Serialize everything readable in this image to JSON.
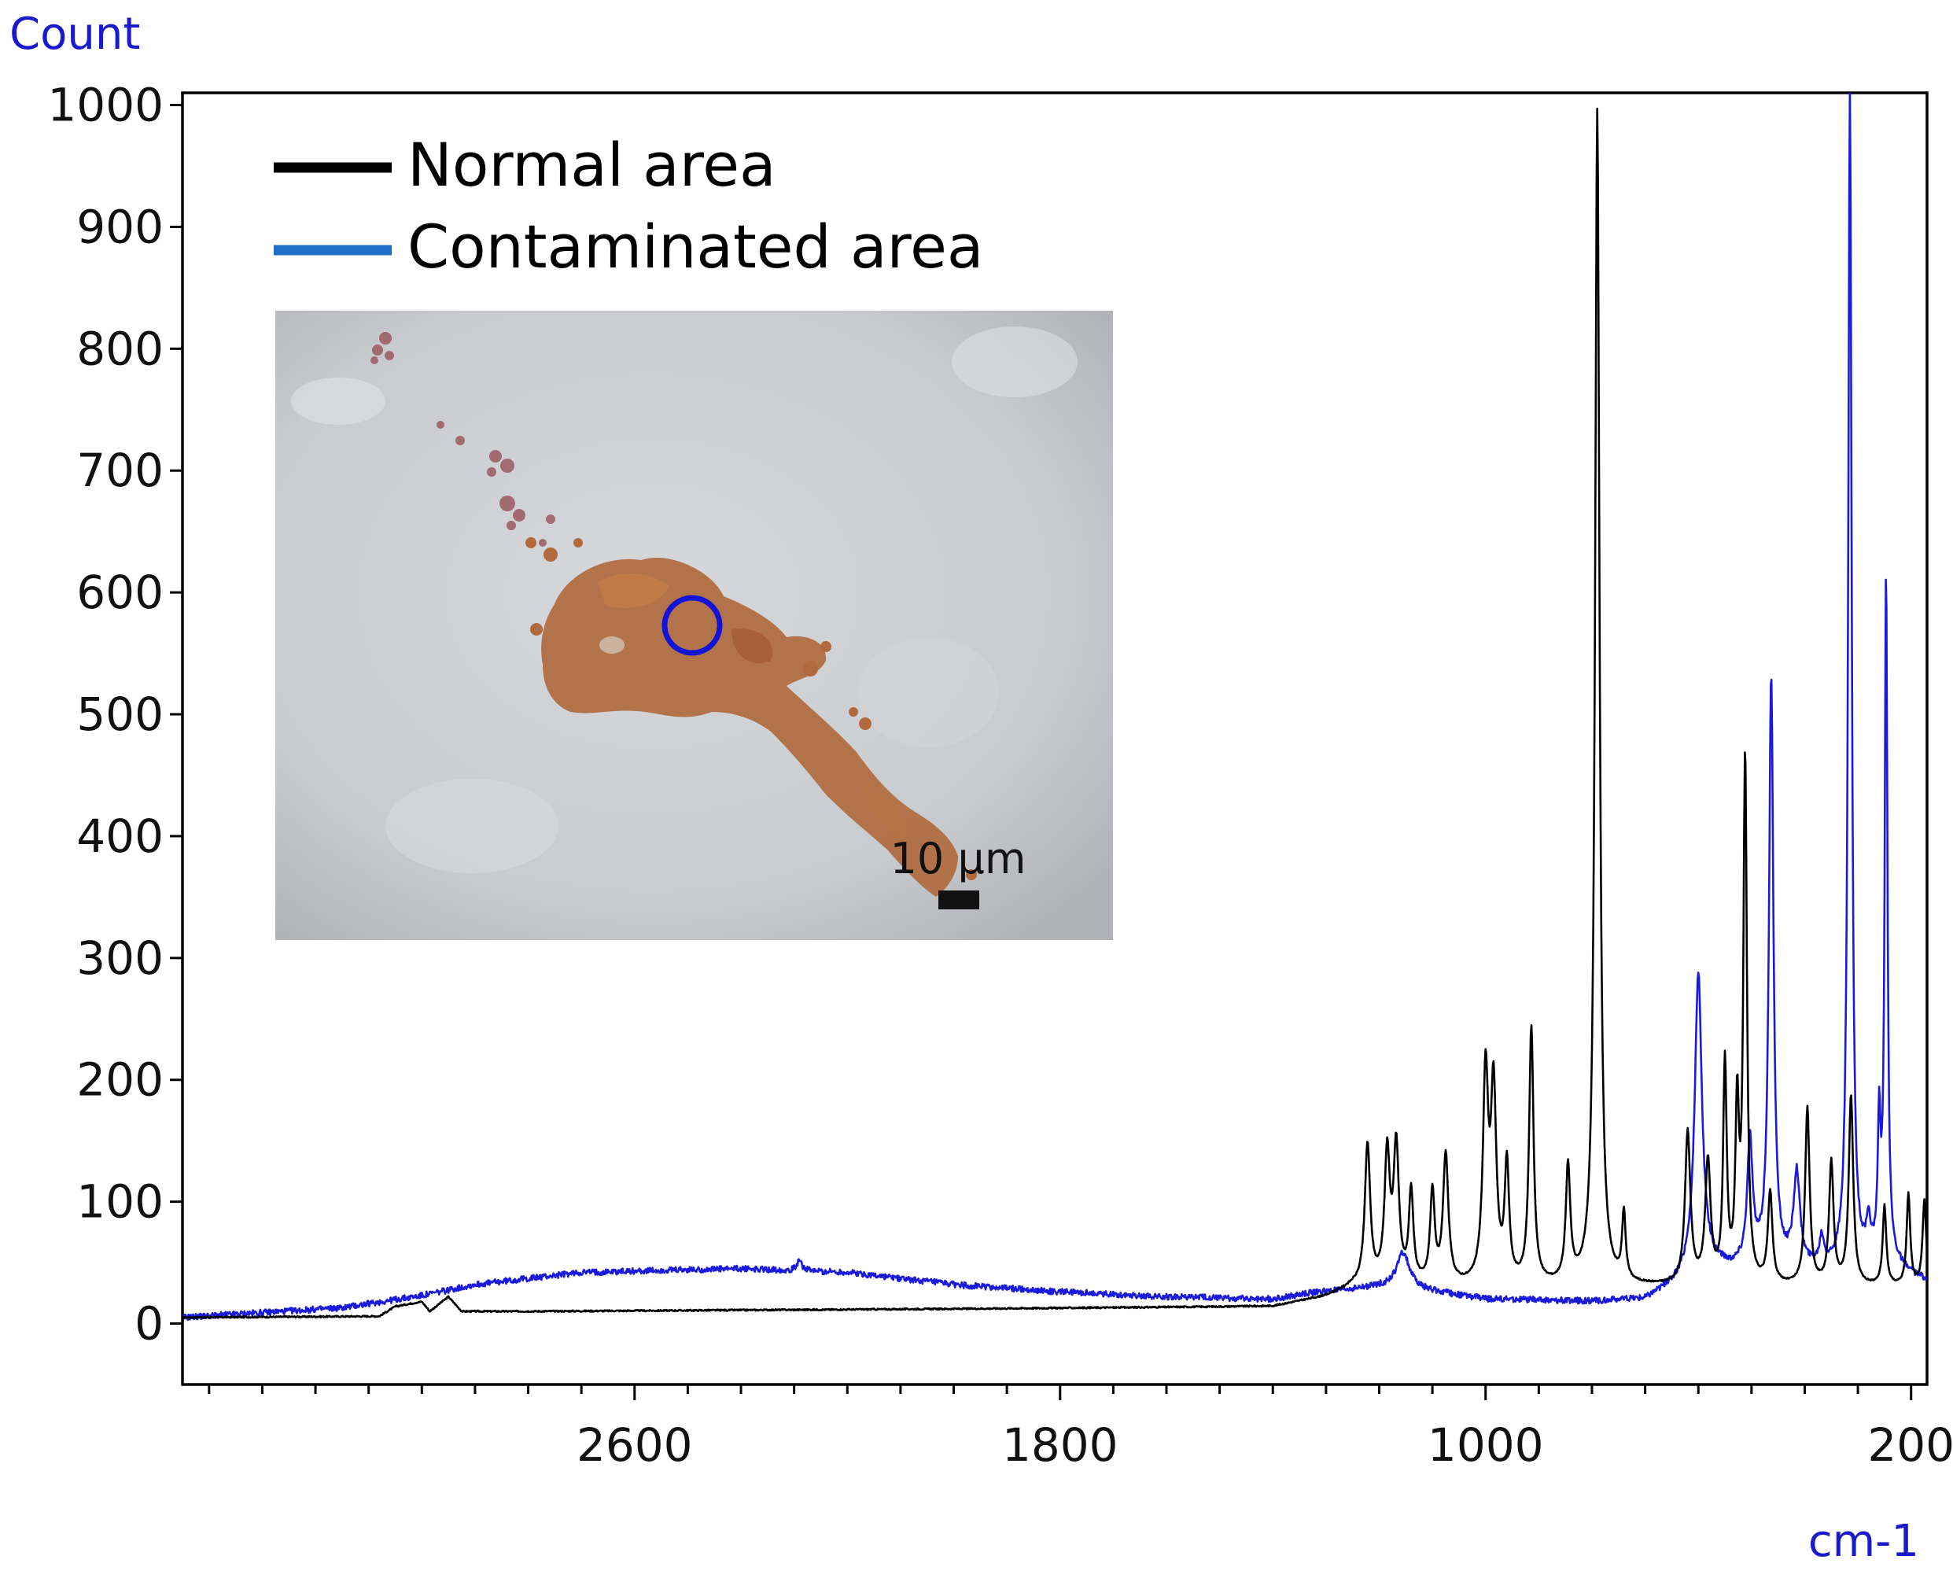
{
  "chart_data": {
    "type": "line",
    "ylabel": "Count",
    "xlabel": "cm-1",
    "xlim": [
      3450,
      170
    ],
    "x_reversed": true,
    "ylim": [
      -50,
      1010
    ],
    "yticks": [
      0,
      100,
      200,
      300,
      400,
      500,
      600,
      700,
      800,
      900,
      1000
    ],
    "xticks": [
      2600,
      1800,
      1000,
      200
    ],
    "legend": {
      "position": "top-left",
      "entries": [
        "Normal area",
        "Contaminated area"
      ]
    },
    "inset": {
      "description": "microscope photo",
      "scalebar_label": "10 µm",
      "position": "upper-left"
    },
    "series": [
      {
        "name": "Normal area",
        "color": "#000000",
        "baseline": [
          [
            3450,
            5
          ],
          [
            3080,
            6
          ],
          [
            3050,
            14
          ],
          [
            3000,
            18
          ],
          [
            2985,
            10
          ],
          [
            2950,
            22
          ],
          [
            2925,
            10
          ],
          [
            2800,
            10
          ],
          [
            2000,
            12
          ],
          [
            1700,
            13
          ],
          [
            1400,
            14
          ],
          [
            1300,
            22
          ],
          [
            1250,
            30
          ],
          [
            200,
            30
          ]
        ],
        "peaks": [
          [
            1222,
            115,
            6
          ],
          [
            1185,
            105,
            6
          ],
          [
            1168,
            110,
            6
          ],
          [
            1140,
            75,
            5
          ],
          [
            1100,
            75,
            5
          ],
          [
            1075,
            105,
            6
          ],
          [
            1000,
            170,
            6
          ],
          [
            985,
            155,
            6
          ],
          [
            960,
            95,
            5
          ],
          [
            914,
            210,
            5
          ],
          [
            845,
            95,
            5
          ],
          [
            790,
            965,
            5
          ],
          [
            740,
            55,
            4
          ],
          [
            620,
            125,
            6
          ],
          [
            582,
            100,
            6
          ],
          [
            550,
            180,
            4
          ],
          [
            527,
            140,
            4
          ],
          [
            512,
            430,
            4
          ],
          [
            465,
            75,
            5
          ],
          [
            395,
            145,
            5
          ],
          [
            350,
            100,
            5
          ],
          [
            313,
            155,
            5
          ],
          [
            250,
            65,
            4
          ],
          [
            205,
            75,
            4
          ],
          [
            175,
            70,
            4
          ]
        ]
      },
      {
        "name": "Contaminated area",
        "color": "#0000cc",
        "baseline": [
          [
            3450,
            5
          ],
          [
            3150,
            13
          ],
          [
            3000,
            23
          ],
          [
            2900,
            32
          ],
          [
            2700,
            42
          ],
          [
            2400,
            45
          ],
          [
            2200,
            42
          ],
          [
            2000,
            32
          ],
          [
            1800,
            26
          ],
          [
            1600,
            22
          ],
          [
            1400,
            20
          ],
          [
            1330,
            25
          ],
          [
            1200,
            30
          ],
          [
            1100,
            26
          ],
          [
            1000,
            20
          ],
          [
            800,
            18
          ],
          [
            700,
            20
          ],
          [
            640,
            34
          ],
          [
            600,
            52
          ],
          [
            540,
            45
          ],
          [
            470,
            50
          ],
          [
            400,
            45
          ],
          [
            300,
            45
          ],
          [
            250,
            55
          ],
          [
            200,
            40
          ],
          [
            170,
            35
          ]
        ],
        "peaks": [
          [
            1155,
            30,
            15
          ],
          [
            2290,
            10,
            5
          ],
          [
            600,
            235,
            8
          ],
          [
            503,
            100,
            6
          ],
          [
            463,
            480,
            5
          ],
          [
            415,
            75,
            7
          ],
          [
            368,
            22,
            5
          ],
          [
            315,
            965,
            4
          ],
          [
            260,
            105,
            3
          ],
          [
            247,
            560,
            3
          ],
          [
            280,
            25,
            5
          ]
        ]
      }
    ]
  }
}
